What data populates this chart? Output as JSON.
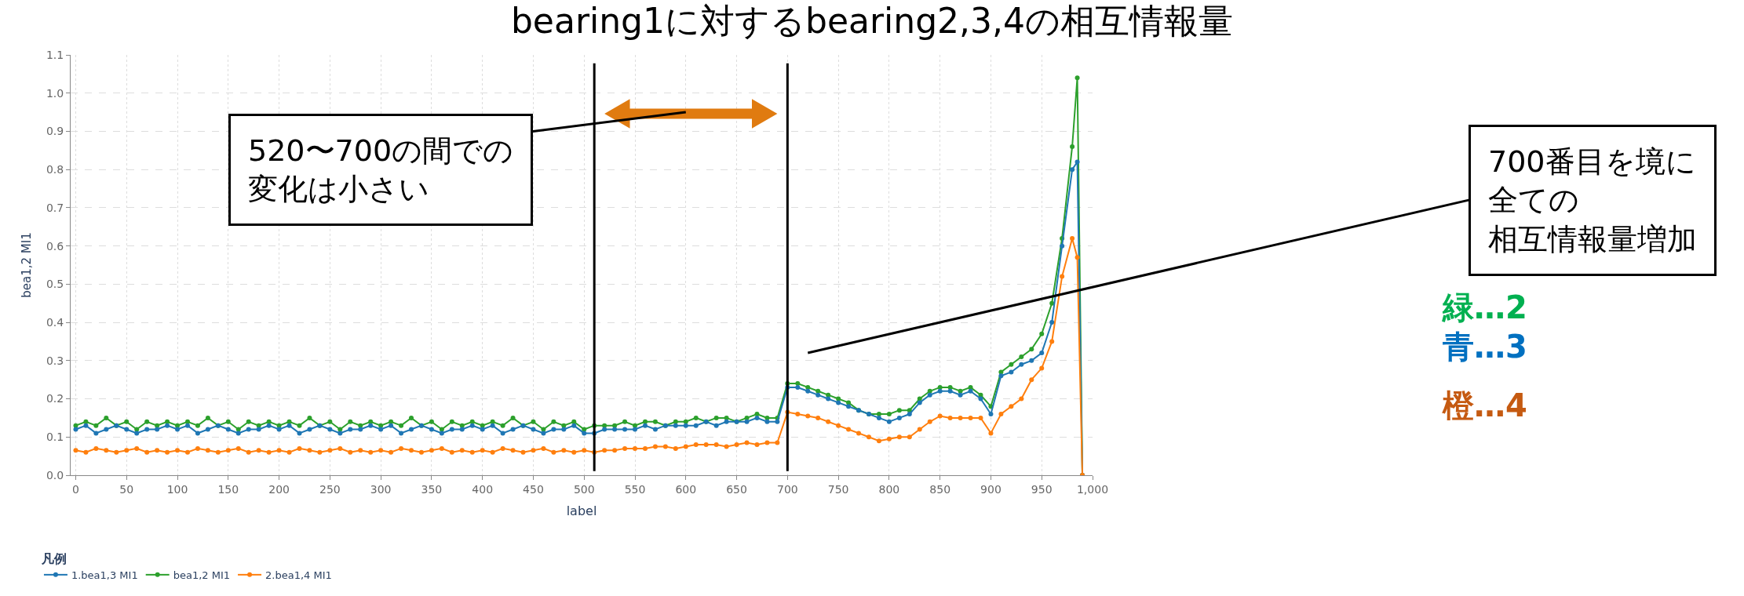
{
  "chart_data": {
    "type": "line",
    "title": "bearing1に対するbearing2,3,4の相互情報量",
    "xlabel": "label",
    "ylabel": "bea1,2 MI1",
    "legend_title": "凡例",
    "x": [
      0,
      10,
      20,
      30,
      40,
      50,
      60,
      70,
      80,
      90,
      100,
      110,
      120,
      130,
      140,
      150,
      160,
      170,
      180,
      190,
      200,
      210,
      220,
      230,
      240,
      250,
      260,
      270,
      280,
      290,
      300,
      310,
      320,
      330,
      340,
      350,
      360,
      370,
      380,
      390,
      400,
      410,
      420,
      430,
      440,
      450,
      460,
      470,
      480,
      490,
      500,
      510,
      520,
      530,
      540,
      550,
      560,
      570,
      580,
      590,
      600,
      610,
      620,
      630,
      640,
      650,
      660,
      670,
      680,
      690,
      700,
      710,
      720,
      730,
      740,
      750,
      760,
      770,
      780,
      790,
      800,
      810,
      820,
      830,
      840,
      850,
      860,
      870,
      880,
      890,
      900,
      910,
      920,
      930,
      940,
      950,
      960,
      970,
      980,
      985,
      990
    ],
    "series": [
      {
        "name": "bea1,2 MI1",
        "color": "#2ca02c",
        "values": [
          0.13,
          0.14,
          0.13,
          0.15,
          0.13,
          0.14,
          0.12,
          0.14,
          0.13,
          0.14,
          0.13,
          0.14,
          0.13,
          0.15,
          0.13,
          0.14,
          0.12,
          0.14,
          0.13,
          0.14,
          0.13,
          0.14,
          0.13,
          0.15,
          0.13,
          0.14,
          0.12,
          0.14,
          0.13,
          0.14,
          0.13,
          0.14,
          0.13,
          0.15,
          0.13,
          0.14,
          0.12,
          0.14,
          0.13,
          0.14,
          0.13,
          0.14,
          0.13,
          0.15,
          0.13,
          0.14,
          0.12,
          0.14,
          0.13,
          0.14,
          0.12,
          0.13,
          0.13,
          0.13,
          0.14,
          0.13,
          0.14,
          0.14,
          0.13,
          0.14,
          0.14,
          0.15,
          0.14,
          0.15,
          0.15,
          0.14,
          0.15,
          0.16,
          0.15,
          0.15,
          0.24,
          0.24,
          0.23,
          0.22,
          0.21,
          0.2,
          0.19,
          0.17,
          0.16,
          0.16,
          0.16,
          0.17,
          0.17,
          0.2,
          0.22,
          0.23,
          0.23,
          0.22,
          0.23,
          0.21,
          0.18,
          0.27,
          0.29,
          0.31,
          0.33,
          0.37,
          0.45,
          0.62,
          0.86,
          1.04,
          0.0
        ]
      },
      {
        "name": "1.bea1,3 MI1",
        "color": "#1f77b4",
        "values": [
          0.12,
          0.13,
          0.11,
          0.12,
          0.13,
          0.12,
          0.11,
          0.12,
          0.12,
          0.13,
          0.12,
          0.13,
          0.11,
          0.12,
          0.13,
          0.12,
          0.11,
          0.12,
          0.12,
          0.13,
          0.12,
          0.13,
          0.11,
          0.12,
          0.13,
          0.12,
          0.11,
          0.12,
          0.12,
          0.13,
          0.12,
          0.13,
          0.11,
          0.12,
          0.13,
          0.12,
          0.11,
          0.12,
          0.12,
          0.13,
          0.12,
          0.13,
          0.11,
          0.12,
          0.13,
          0.12,
          0.11,
          0.12,
          0.12,
          0.13,
          0.11,
          0.11,
          0.12,
          0.12,
          0.12,
          0.12,
          0.13,
          0.12,
          0.13,
          0.13,
          0.13,
          0.13,
          0.14,
          0.13,
          0.14,
          0.14,
          0.14,
          0.15,
          0.14,
          0.14,
          0.23,
          0.23,
          0.22,
          0.21,
          0.2,
          0.19,
          0.18,
          0.17,
          0.16,
          0.15,
          0.14,
          0.15,
          0.16,
          0.19,
          0.21,
          0.22,
          0.22,
          0.21,
          0.22,
          0.2,
          0.16,
          0.26,
          0.27,
          0.29,
          0.3,
          0.32,
          0.4,
          0.6,
          0.8,
          0.82,
          0.0
        ]
      },
      {
        "name": "2.bea1,4 MI1",
        "color": "#ff7f0e",
        "values": [
          0.065,
          0.06,
          0.07,
          0.065,
          0.06,
          0.065,
          0.07,
          0.06,
          0.065,
          0.06,
          0.065,
          0.06,
          0.07,
          0.065,
          0.06,
          0.065,
          0.07,
          0.06,
          0.065,
          0.06,
          0.065,
          0.06,
          0.07,
          0.065,
          0.06,
          0.065,
          0.07,
          0.06,
          0.065,
          0.06,
          0.065,
          0.06,
          0.07,
          0.065,
          0.06,
          0.065,
          0.07,
          0.06,
          0.065,
          0.06,
          0.065,
          0.06,
          0.07,
          0.065,
          0.06,
          0.065,
          0.07,
          0.06,
          0.065,
          0.06,
          0.065,
          0.06,
          0.065,
          0.065,
          0.07,
          0.07,
          0.07,
          0.075,
          0.075,
          0.07,
          0.075,
          0.08,
          0.08,
          0.08,
          0.075,
          0.08,
          0.085,
          0.08,
          0.085,
          0.085,
          0.165,
          0.16,
          0.155,
          0.15,
          0.14,
          0.13,
          0.12,
          0.11,
          0.1,
          0.09,
          0.095,
          0.1,
          0.1,
          0.12,
          0.14,
          0.155,
          0.15,
          0.15,
          0.15,
          0.15,
          0.11,
          0.16,
          0.18,
          0.2,
          0.25,
          0.28,
          0.35,
          0.52,
          0.62,
          0.57,
          0.0
        ]
      }
    ],
    "xlim": [
      -5,
      1000
    ],
    "xticks": [
      0,
      50,
      100,
      150,
      200,
      250,
      300,
      350,
      400,
      450,
      500,
      550,
      600,
      650,
      700,
      750,
      800,
      850,
      900,
      950,
      {
        "value": 1000,
        "label": "1,000"
      }
    ],
    "ylim": [
      0,
      1.1
    ],
    "yticks": [
      {
        "value": 0,
        "label": "0.0"
      },
      {
        "value": 0.1,
        "label": "0.1"
      },
      {
        "value": 0.2,
        "label": "0.2"
      },
      {
        "value": 0.3,
        "label": "0.3"
      },
      {
        "value": 0.4,
        "label": "0.4"
      },
      {
        "value": 0.5,
        "label": "0.5"
      },
      {
        "value": 0.6,
        "label": "0.6"
      },
      {
        "value": 0.7,
        "label": "0.7"
      },
      {
        "value": 0.8,
        "label": "0.8"
      },
      {
        "value": 0.9,
        "label": "0.9"
      },
      {
        "value": 1.0,
        "label": "1.0"
      },
      {
        "value": 1.1,
        "label": "1.1"
      }
    ],
    "ref_lines": [
      {
        "axis": "x",
        "value": 510,
        "color": "#000000"
      },
      {
        "axis": "x",
        "value": 700,
        "color": "#000000"
      }
    ],
    "annotations": [
      "520〜700の間での",
      "変化は小さい",
      "700番目を境に",
      "全ての",
      "相互情報量増加",
      "緑…2",
      "青…3",
      "橙…4"
    ],
    "grid": true,
    "legend": "bottom left",
    "marker": "circle",
    "line_style": "solid"
  }
}
